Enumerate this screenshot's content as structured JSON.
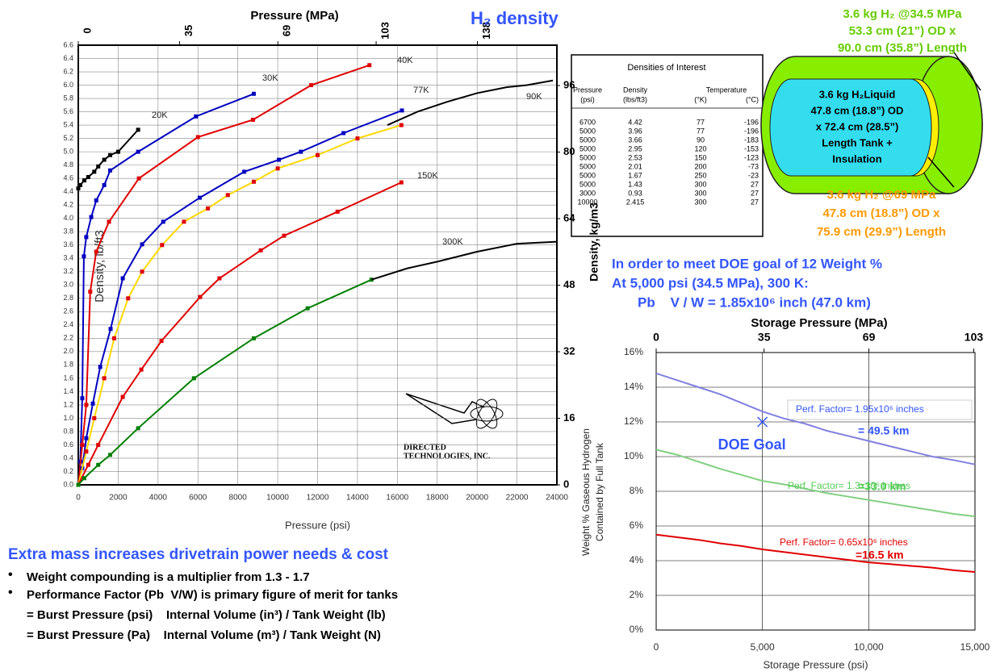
{
  "chart_data": [
    {
      "type": "line",
      "title": "H₂ density",
      "xlabel": "Pressure (psi)",
      "ylabel": "Density, lb/ft3",
      "x2label": "Pressure (MPa)",
      "y2label": "Density, kg/m3",
      "xlim": [
        0,
        24000
      ],
      "xticks": [
        0,
        2000,
        4000,
        6000,
        8000,
        10000,
        12000,
        14000,
        16000,
        18000,
        20000,
        22000,
        24000
      ],
      "ylim": [
        0,
        6.6
      ],
      "yticks": [
        {
          "value": 0,
          "label": "0.0"
        },
        0.2,
        0.4,
        0.6,
        0.8,
        {
          "value": 1,
          "label": "1.0"
        },
        1.2,
        1.4,
        1.6,
        1.8,
        {
          "value": 2,
          "label": "2.0"
        },
        2.2,
        2.4,
        2.6,
        2.8,
        {
          "value": 3,
          "label": "3.0"
        },
        3.2,
        3.4,
        3.6,
        3.8,
        {
          "value": 4,
          "label": "4.0"
        },
        4.2,
        4.4,
        4.6,
        4.8,
        {
          "value": 5,
          "label": "5.0"
        },
        5.2,
        5.4,
        5.6,
        5.8,
        {
          "value": 6,
          "label": "6.0"
        },
        6.2,
        6.4,
        6.6
      ],
      "x2lim": [
        0,
        165.5
      ],
      "x2ticks": [
        0,
        35,
        69,
        103,
        138
      ],
      "y2lim": [
        0,
        105.7
      ],
      "y2ticks": [
        0,
        16,
        32,
        48,
        64,
        80,
        96
      ],
      "grid": true,
      "series": [
        {
          "name": "20K",
          "color": "#000000",
          "markers": true,
          "x": [
            0,
            100,
            300,
            500,
            800,
            1000,
            1300,
            1600,
            2000,
            3000
          ],
          "values": [
            4.45,
            4.5,
            4.57,
            4.62,
            4.7,
            4.78,
            4.88,
            4.95,
            5.0,
            5.33
          ]
        },
        {
          "name": "30K",
          "color": "#0000c0",
          "markers": true,
          "x": [
            0,
            100,
            200,
            280,
            400,
            650,
            900,
            1300,
            1600,
            3000,
            5900,
            8800
          ],
          "values": [
            0,
            0.35,
            1.3,
            3.43,
            3.72,
            4.02,
            4.27,
            4.5,
            4.72,
            5.0,
            5.53,
            5.87
          ]
        },
        {
          "name": "40K",
          "color": "#e00000",
          "markers": true,
          "x": [
            0,
            200,
            400,
            600,
            900,
            1540,
            3040,
            6000,
            8760,
            11680,
            14600
          ],
          "values": [
            0,
            0.6,
            1.2,
            2.9,
            3.5,
            3.95,
            4.6,
            5.22,
            5.48,
            6.0,
            6.3
          ]
        },
        {
          "name": "77K",
          "color": "#0000c0",
          "markers": true,
          "x": [
            0,
            200,
            400,
            730,
            1100,
            1620,
            2230,
            3200,
            4260,
            6090,
            8320,
            10060,
            11160,
            13300,
            16230
          ],
          "values": [
            0,
            0.25,
            0.7,
            1.22,
            1.77,
            2.34,
            3.1,
            3.61,
            3.95,
            4.31,
            4.7,
            4.88,
            5.0,
            5.28,
            5.62
          ]
        },
        {
          "color": "#ffd800",
          "marker_color": "#e00000",
          "markers": true,
          "x": [
            0,
            400,
            800,
            1300,
            1800,
            2500,
            3200,
            4200,
            5300,
            6500,
            7500,
            8800,
            10000,
            12000,
            14000,
            16200
          ],
          "values": [
            0,
            0.5,
            1.0,
            1.6,
            2.2,
            2.8,
            3.2,
            3.6,
            3.95,
            4.15,
            4.35,
            4.55,
            4.75,
            4.95,
            5.2,
            5.4
          ]
        },
        {
          "name": "90K",
          "color": "#000000",
          "markers": false,
          "x": [
            15500,
            17000,
            18500,
            20000,
            21500,
            22500,
            23800
          ],
          "values": [
            5.4,
            5.6,
            5.75,
            5.88,
            5.97,
            6.0,
            6.07
          ]
        },
        {
          "name": "150K",
          "color": "#e00000",
          "markers": true,
          "x": [
            0,
            500,
            1000,
            2230,
            3160,
            4170,
            6110,
            7080,
            9150,
            10320,
            13000,
            16200
          ],
          "values": [
            0,
            0.3,
            0.6,
            1.32,
            1.73,
            2.16,
            2.82,
            3.1,
            3.52,
            3.74,
            4.1,
            4.54
          ]
        },
        {
          "color": "#008000",
          "markers": true,
          "x": [
            0,
            300,
            1000,
            1600,
            3000,
            5800,
            8800,
            11500,
            14700
          ],
          "values": [
            0,
            0.1,
            0.3,
            0.45,
            0.85,
            1.6,
            2.2,
            2.65,
            3.08
          ]
        },
        {
          "name": "300K",
          "color": "#000000",
          "markers": false,
          "x": [
            14700,
            16500,
            18000,
            20000,
            22000,
            24000
          ],
          "values": [
            3.08,
            3.25,
            3.35,
            3.5,
            3.62,
            3.65
          ]
        }
      ]
    },
    {
      "type": "line",
      "xlabel": "Storage Pressure (psi)",
      "x2label": "Storage Pressure (MPa)",
      "ylabel": [
        "Weight % Gaseous Hydrogen",
        "Contained by Full Tank"
      ],
      "xlim": [
        0,
        15000
      ],
      "xticks": [
        0,
        {
          "value": 5000,
          "label": "5,000"
        },
        {
          "value": 10000,
          "label": "10,000"
        },
        {
          "value": 15000,
          "label": "15,000"
        }
      ],
      "ylim": [
        0,
        16
      ],
      "yticks": [
        {
          "value": 0,
          "label": "0%"
        },
        {
          "value": 2,
          "label": "2%"
        },
        {
          "value": 4,
          "label": "4%"
        },
        {
          "value": 6,
          "label": "6%"
        },
        {
          "value": 8,
          "label": "8%"
        },
        {
          "value": 10,
          "label": "10%"
        },
        {
          "value": 12,
          "label": "12%"
        },
        {
          "value": 14,
          "label": "14%"
        },
        {
          "value": 16,
          "label": "16%"
        }
      ],
      "x2lim": [
        0,
        103.4
      ],
      "x2ticks": [
        0,
        35,
        69,
        103
      ],
      "grid": true,
      "x": [
        0,
        1000,
        2000,
        3000,
        4000,
        5000,
        6000,
        7000,
        8000,
        9000,
        10000,
        11000,
        12000,
        13000,
        14000,
        15000
      ],
      "series": [
        {
          "color": "#8080e0",
          "markers": false,
          "values": [
            14.8,
            14.4,
            14.0,
            13.6,
            13.1,
            12.6,
            12.2,
            11.9,
            11.5,
            11.2,
            10.9,
            10.6,
            10.3,
            10.0,
            9.8,
            9.55
          ]
        },
        {
          "color": "#80d080",
          "markers": false,
          "values": [
            10.4,
            10.1,
            9.7,
            9.3,
            8.95,
            8.6,
            8.4,
            8.15,
            7.9,
            7.7,
            7.5,
            7.3,
            7.1,
            6.9,
            6.7,
            6.55
          ]
        },
        {
          "color": "#e00000",
          "markers": false,
          "values": [
            5.5,
            5.35,
            5.2,
            5.0,
            4.85,
            4.65,
            4.5,
            4.35,
            4.2,
            4.05,
            3.9,
            3.8,
            3.7,
            3.6,
            3.45,
            3.35
          ]
        }
      ],
      "doe_goal": {
        "x": 5000,
        "y": 12,
        "label": "DOE Goal",
        "color": "#3355ff"
      },
      "annotations": [
        "Perf. Factor= 1.95x10⁶ inches",
        "= 49.5 km",
        "Perf. Factor= 1.3x10⁶ inches",
        "=33.0 km",
        "Perf. Factor= 0.65x10⁶ inches",
        "=16.5 km"
      ]
    }
  ],
  "table": {
    "title": "Densities of Interest",
    "header_top": [
      "Pressure",
      "Density",
      "Temperature"
    ],
    "header_units": [
      "(psi)",
      "(lbs/ft3)",
      "(°K)",
      "(°C)"
    ],
    "rows": [
      [
        6700,
        4.42,
        77,
        -196
      ],
      [
        5000,
        3.96,
        77,
        -196
      ],
      [
        5000,
        3.66,
        90,
        -183
      ],
      [
        5000,
        2.95,
        120,
        -153
      ],
      [
        5000,
        2.53,
        150,
        -123
      ],
      [
        5000,
        2.01,
        200,
        -73
      ],
      [
        5000,
        1.67,
        250,
        -23
      ],
      [
        5000,
        1.43,
        300,
        27
      ],
      [
        3000,
        0.93,
        300,
        27
      ],
      [
        10000,
        2.415,
        300,
        27
      ]
    ]
  },
  "tank": {
    "gas_34_5": [
      "3.6 kg H₂ @34.5 MPa",
      "53.3 cm (21”) OD x",
      "90.0 cm (35.8”) Length"
    ],
    "liquid": [
      "3.6 kg H₂Liquid",
      "47.8 cm (18.8”) OD",
      "x 72.4 cm (28.5”)",
      "Length Tank +",
      "Insulation"
    ],
    "gas_69": [
      "3.6 kg H₂ @69 MPa",
      "47.8 cm (18.8”) OD x",
      "75.9 cm (29.9”) Length"
    ]
  },
  "goal_text": [
    "In order to meet DOE goal of 12 Weight %",
    "At 5,000 psi (34.5 MPa), 300 K:",
    "Pb    V / W = 1.85x10⁶ inch (47.0 km)"
  ],
  "logo": [
    "DIRECTED",
    "TECHNOLOGIES, INC."
  ],
  "bottom": {
    "heading": "Extra mass increases drivetrain power needs & cost",
    "bullets": [
      "Weight compounding is a multiplier from 1.3 - 1.7",
      "Performance Factor (Pb  V/W) is primary figure of merit for tanks"
    ],
    "formulas": [
      "= Burst Pressure (psi)    Internal Volume (in³) / Tank Weight (lb)",
      "= Burst Pressure (Pa)    Internal Volume (m³) / Tank Weight (N)"
    ]
  }
}
